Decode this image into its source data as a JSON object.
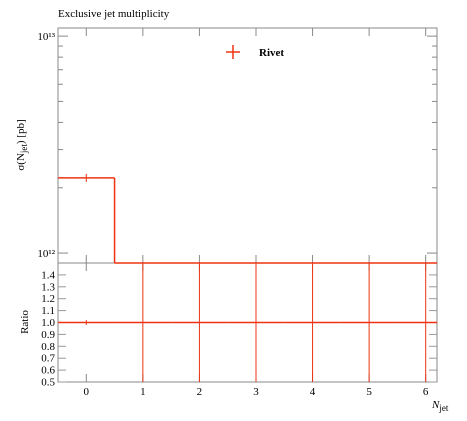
{
  "chart_data": {
    "type": "histogram",
    "title": "Exclusive jet multiplicity",
    "ylabel": [
      "σ(N",
      "jet",
      ") [pb]"
    ],
    "xlabel": [
      "N",
      "jet"
    ],
    "ratio_ylabel": "Ratio",
    "legend": "upper-center",
    "log_y": true,
    "color": "#ee3311",
    "bins": [
      -0.5,
      0.5,
      1.5,
      2.5,
      3.5,
      4.5,
      5.5,
      6.5
    ],
    "series": [
      {
        "name": "Rivet",
        "color": "#ee3311",
        "values": [
          2220000000000.0,
          0,
          0,
          0,
          0,
          0,
          0
        ],
        "ratio": [
          1,
          1,
          1,
          1,
          1,
          1,
          1
        ],
        "ratio_errors": [
          0.02,
          0.5,
          0.5,
          0.5,
          0.5,
          0.5,
          0.5
        ]
      }
    ],
    "x": [
      0,
      1,
      2,
      3,
      4,
      5,
      6
    ],
    "xlim": [
      -0.5,
      6.2
    ],
    "xticks": [
      0,
      1,
      2,
      3,
      4,
      5,
      6
    ],
    "ylim": [
      900000000000.0,
      10900000000000.0
    ],
    "yticks": [
      {
        "value": 1000000000000.0,
        "label": "10¹²"
      },
      {
        "value": 10000000000000.0,
        "label": "10¹³"
      }
    ],
    "yminorticks": [
      2000000000000.0,
      3000000000000.0,
      4000000000000.0,
      5000000000000.0,
      6000000000000.0,
      7000000000000.0,
      8000000000000.0,
      9000000000000.0
    ],
    "ratio_ylim": [
      0.5,
      1.5
    ],
    "ratio_yticks": [
      0.5,
      0.6,
      0.7,
      0.8,
      0.9,
      {
        "value": 1,
        "label": "1.0"
      },
      1.1,
      1.2,
      1.3,
      1.4
    ]
  }
}
